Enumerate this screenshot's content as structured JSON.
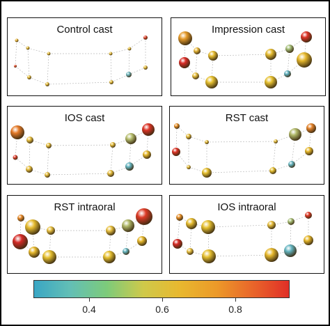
{
  "panels": [
    {
      "title": "Control cast"
    },
    {
      "title": "Impression cast"
    },
    {
      "title": "IOS cast"
    },
    {
      "title": "RST cast"
    },
    {
      "title": "RST intraoral"
    },
    {
      "title": "IOS intraoral"
    }
  ],
  "colorbar": {
    "min": 0.25,
    "max": 0.95,
    "ticks": [
      "0.4",
      "0.6",
      "0.8"
    ],
    "colors": [
      "#3aa6c4",
      "#63bfb5",
      "#7dcb7a",
      "#cfc94a",
      "#e8b82f",
      "#ec9a29",
      "#e9662a",
      "#e02f27"
    ]
  }
}
